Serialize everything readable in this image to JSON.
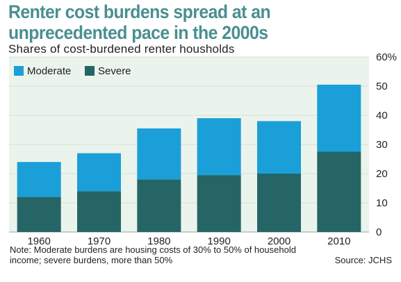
{
  "title": "Renter cost burdens spread at an unprecedented pace in the 2000s",
  "subtitle": "Shares of cost-burdened renter housholds",
  "note": "Note: Moderate burdens are housing costs of 30% to 50% of household income; severe burdens, more than 50%",
  "source": "Source: JCHS",
  "colors": {
    "moderate": "#1a9fd8",
    "severe": "#256565",
    "plot_bg": "#eaf4ec",
    "grid": "#d4dfd6",
    "title": "#4a8f91"
  },
  "chart_data": {
    "type": "bar",
    "stacked": true,
    "categories": [
      "1960",
      "1970",
      "1980",
      "1990",
      "2000",
      "2010"
    ],
    "series": [
      {
        "name": "Severe",
        "values": [
          12,
          14,
          18,
          19.5,
          20,
          27.5
        ],
        "color": "#256565"
      },
      {
        "name": "Moderate",
        "values": [
          12,
          13,
          17.5,
          19.5,
          18,
          23
        ],
        "color": "#1a9fd8"
      }
    ],
    "y_ticks": [
      "0",
      "10",
      "20",
      "30",
      "40",
      "50",
      "60%"
    ],
    "ylim": [
      0,
      60
    ],
    "legend": [
      "Moderate",
      "Severe"
    ],
    "legend_position": "top-left",
    "y_axis_position": "right",
    "grid": true
  }
}
